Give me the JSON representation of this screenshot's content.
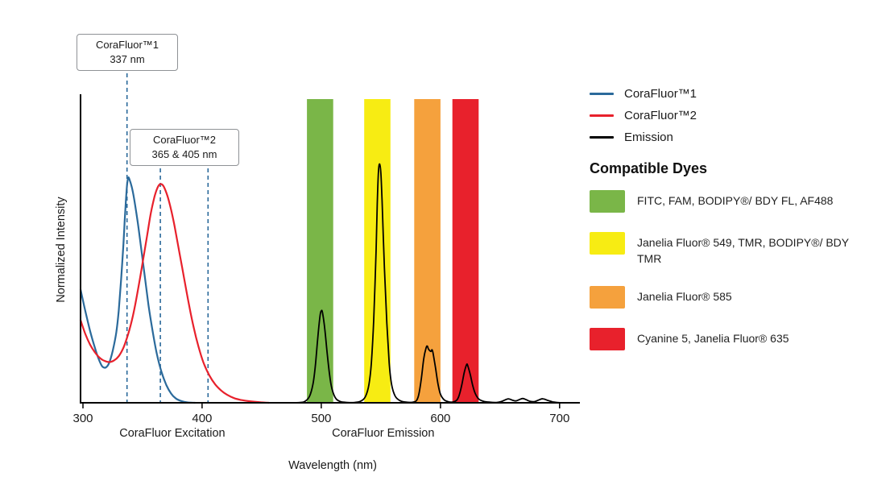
{
  "figure": {
    "background": "#ffffff"
  },
  "chart_data": {
    "type": "line",
    "title": "",
    "xlabel": "Wavelength (nm)",
    "ylabel": "Normalized Intensity",
    "xlim": [
      298,
      717
    ],
    "ylim": [
      0,
      1
    ],
    "x_ticks": [
      300,
      400,
      500,
      600,
      700
    ],
    "grid": false,
    "legend_position": "right",
    "marker_color": "#2b6a9b",
    "x_axis_group_labels": [
      {
        "text": "CoraFluor Excitation",
        "center_nm": 375
      },
      {
        "text": "CoraFluor Emission",
        "center_nm": 552
      }
    ],
    "annotations": [
      {
        "line1": "CoraFluor™1",
        "line2": "337 nm",
        "marker_nm": [
          337
        ]
      },
      {
        "line1": "CoraFluor™2",
        "line2": "365 & 405 nm",
        "marker_nm": [
          365,
          405
        ]
      }
    ],
    "bands": [
      {
        "label": "FITC, FAM, BODIPY®/ BDY FL, AF488",
        "color": "#7ab648",
        "from_nm": 488,
        "to_nm": 510
      },
      {
        "label": "Janelia Fluor® 549, TMR, BODIPY®/ BDY TMR",
        "color": "#f7ec13",
        "from_nm": 536,
        "to_nm": 558
      },
      {
        "label": "Janelia Fluor® 585",
        "color": "#f5a13d",
        "from_nm": 578,
        "to_nm": 600
      },
      {
        "label": "Cyanine 5, Janelia Fluor® 635",
        "color": "#e8212c",
        "from_nm": 610,
        "to_nm": 632
      }
    ],
    "series": [
      {
        "name": "CoraFluor™1",
        "color": "#2b6a9b",
        "points": [
          [
            298,
            0.37
          ],
          [
            302,
            0.3
          ],
          [
            306,
            0.235
          ],
          [
            310,
            0.18
          ],
          [
            313,
            0.145
          ],
          [
            316,
            0.12
          ],
          [
            319,
            0.115
          ],
          [
            322,
            0.13
          ],
          [
            325,
            0.17
          ],
          [
            328,
            0.23
          ],
          [
            330,
            0.3
          ],
          [
            332,
            0.4
          ],
          [
            334,
            0.52
          ],
          [
            335,
            0.59
          ],
          [
            336,
            0.655
          ],
          [
            337,
            0.71
          ],
          [
            338,
            0.735
          ],
          [
            339,
            0.73
          ],
          [
            341,
            0.705
          ],
          [
            343,
            0.665
          ],
          [
            346,
            0.59
          ],
          [
            349,
            0.5
          ],
          [
            352,
            0.41
          ],
          [
            355,
            0.32
          ],
          [
            358,
            0.245
          ],
          [
            362,
            0.16
          ],
          [
            366,
            0.1
          ],
          [
            370,
            0.058
          ],
          [
            374,
            0.03
          ],
          [
            378,
            0.014
          ],
          [
            383,
            0.005
          ],
          [
            388,
            0.001
          ],
          [
            394,
            0
          ]
        ]
      },
      {
        "name": "CoraFluor™2",
        "color": "#e8212c",
        "points": [
          [
            298,
            0.27
          ],
          [
            302,
            0.225
          ],
          [
            306,
            0.19
          ],
          [
            310,
            0.165
          ],
          [
            314,
            0.147
          ],
          [
            318,
            0.137
          ],
          [
            322,
            0.133
          ],
          [
            326,
            0.138
          ],
          [
            330,
            0.152
          ],
          [
            334,
            0.18
          ],
          [
            338,
            0.225
          ],
          [
            342,
            0.285
          ],
          [
            346,
            0.365
          ],
          [
            350,
            0.455
          ],
          [
            354,
            0.55
          ],
          [
            357,
            0.62
          ],
          [
            360,
            0.672
          ],
          [
            362,
            0.697
          ],
          [
            364,
            0.712
          ],
          [
            366,
            0.714
          ],
          [
            368,
            0.705
          ],
          [
            371,
            0.675
          ],
          [
            374,
            0.63
          ],
          [
            377,
            0.575
          ],
          [
            381,
            0.49
          ],
          [
            385,
            0.405
          ],
          [
            389,
            0.32
          ],
          [
            393,
            0.245
          ],
          [
            397,
            0.183
          ],
          [
            401,
            0.133
          ],
          [
            406,
            0.09
          ],
          [
            411,
            0.06
          ],
          [
            416,
            0.04
          ],
          [
            421,
            0.026
          ],
          [
            427,
            0.015
          ],
          [
            433,
            0.009
          ],
          [
            440,
            0.005
          ],
          [
            448,
            0.002
          ],
          [
            456,
            0
          ]
        ]
      },
      {
        "name": "Emission",
        "color": "#000000",
        "points": [
          [
            476,
            0
          ],
          [
            482,
            0.001
          ],
          [
            486,
            0.004
          ],
          [
            490,
            0.02
          ],
          [
            493,
            0.06
          ],
          [
            495,
            0.12
          ],
          [
            497,
            0.21
          ],
          [
            499,
            0.285
          ],
          [
            500,
            0.3
          ],
          [
            501,
            0.295
          ],
          [
            503,
            0.24
          ],
          [
            505,
            0.16
          ],
          [
            507,
            0.09
          ],
          [
            509,
            0.045
          ],
          [
            512,
            0.015
          ],
          [
            516,
            0.004
          ],
          [
            522,
            0.001
          ],
          [
            528,
            0.001
          ],
          [
            533,
            0.005
          ],
          [
            537,
            0.02
          ],
          [
            540,
            0.06
          ],
          [
            542,
            0.13
          ],
          [
            544,
            0.27
          ],
          [
            546,
            0.5
          ],
          [
            547,
            0.65
          ],
          [
            548,
            0.755
          ],
          [
            549,
            0.78
          ],
          [
            550,
            0.75
          ],
          [
            551,
            0.66
          ],
          [
            553,
            0.44
          ],
          [
            555,
            0.26
          ],
          [
            557,
            0.13
          ],
          [
            559,
            0.06
          ],
          [
            562,
            0.022
          ],
          [
            566,
            0.007
          ],
          [
            571,
            0.002
          ],
          [
            577,
            0.002
          ],
          [
            580,
            0.008
          ],
          [
            582,
            0.03
          ],
          [
            584,
            0.08
          ],
          [
            586,
            0.145
          ],
          [
            588,
            0.18
          ],
          [
            589,
            0.185
          ],
          [
            590,
            0.175
          ],
          [
            592,
            0.168
          ],
          [
            593,
            0.173
          ],
          [
            594,
            0.158
          ],
          [
            596,
            0.11
          ],
          [
            598,
            0.06
          ],
          [
            600,
            0.028
          ],
          [
            603,
            0.01
          ],
          [
            607,
            0.003
          ],
          [
            611,
            0.003
          ],
          [
            614,
            0.01
          ],
          [
            616,
            0.028
          ],
          [
            618,
            0.06
          ],
          [
            620,
            0.1
          ],
          [
            622,
            0.125
          ],
          [
            623,
            0.12
          ],
          [
            625,
            0.092
          ],
          [
            627,
            0.058
          ],
          [
            629,
            0.032
          ],
          [
            632,
            0.013
          ],
          [
            636,
            0.005
          ],
          [
            641,
            0.002
          ],
          [
            647,
            0.001
          ],
          [
            651,
            0.004
          ],
          [
            654,
            0.009
          ],
          [
            657,
            0.013
          ],
          [
            660,
            0.009
          ],
          [
            663,
            0.006
          ],
          [
            666,
            0.01
          ],
          [
            669,
            0.014
          ],
          [
            672,
            0.01
          ],
          [
            675,
            0.005
          ],
          [
            679,
            0.004
          ],
          [
            683,
            0.01
          ],
          [
            686,
            0.013
          ],
          [
            690,
            0.008
          ],
          [
            694,
            0.003
          ],
          [
            698,
            0.001
          ],
          [
            703,
            0
          ]
        ]
      }
    ]
  },
  "legend": {
    "items": [
      {
        "label": "CoraFluor™1",
        "color": "#2b6a9b"
      },
      {
        "label": "CoraFluor™2",
        "color": "#e8212c"
      },
      {
        "label": "Emission",
        "color": "#000000"
      }
    ],
    "dyes_heading": "Compatible Dyes",
    "dyes": [
      {
        "label": "FITC, FAM, BODIPY®/ BDY FL, AF488",
        "color": "#7ab648"
      },
      {
        "label": "Janelia Fluor® 549, TMR, BODIPY®/ BDY TMR",
        "color": "#f7ec13"
      },
      {
        "label": "Janelia Fluor® 585",
        "color": "#f5a13d"
      },
      {
        "label": "Cyanine 5, Janelia Fluor® 635",
        "color": "#e8212c"
      }
    ]
  }
}
